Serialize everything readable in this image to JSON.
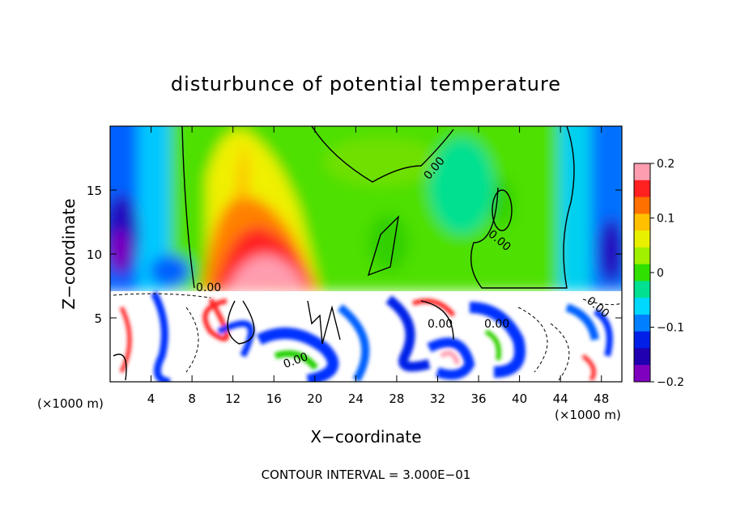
{
  "chart_data": {
    "type": "heatmap",
    "title": "disturbunce of potential temperature",
    "xlabel": "X−coordinate",
    "ylabel": "Z−coordinate",
    "x_unit_left": "(×1000 m)",
    "x_unit_right": "(×1000 m)",
    "xlim": [
      0,
      50
    ],
    "ylim": [
      0,
      20
    ],
    "x_ticks": [
      4,
      8,
      12,
      16,
      20,
      24,
      28,
      32,
      36,
      40,
      44,
      48
    ],
    "x_tick_labels": [
      "4",
      "8",
      "12",
      "16",
      "20",
      "24",
      "28",
      "32",
      "36",
      "40",
      "44",
      "48"
    ],
    "y_ticks": [
      5,
      10,
      15
    ],
    "y_tick_labels": [
      "5",
      "10",
      "15"
    ],
    "colorbar": {
      "range": [
        -0.2,
        0.2
      ],
      "ticks": [
        0.2,
        0.1,
        0,
        -0.1,
        -0.2
      ],
      "tick_labels": [
        "0.2",
        "0.1",
        "0",
        "−0.1",
        "−0.2"
      ],
      "colors": [
        "#ff9db0",
        "#ff2020",
        "#ff7000",
        "#ffc000",
        "#e8f000",
        "#a0f000",
        "#30e000",
        "#00e090",
        "#00d8ff",
        "#0080ff",
        "#0020e8",
        "#2000b0",
        "#8000c0"
      ]
    },
    "contour_labels": [
      "0.00",
      "0.00",
      "0.00",
      "0.00",
      "0.00",
      "0.00",
      "0.00"
    ],
    "grid": false,
    "legend": "right",
    "footer": "CONTOUR INTERVAL = 3.000E−01"
  }
}
